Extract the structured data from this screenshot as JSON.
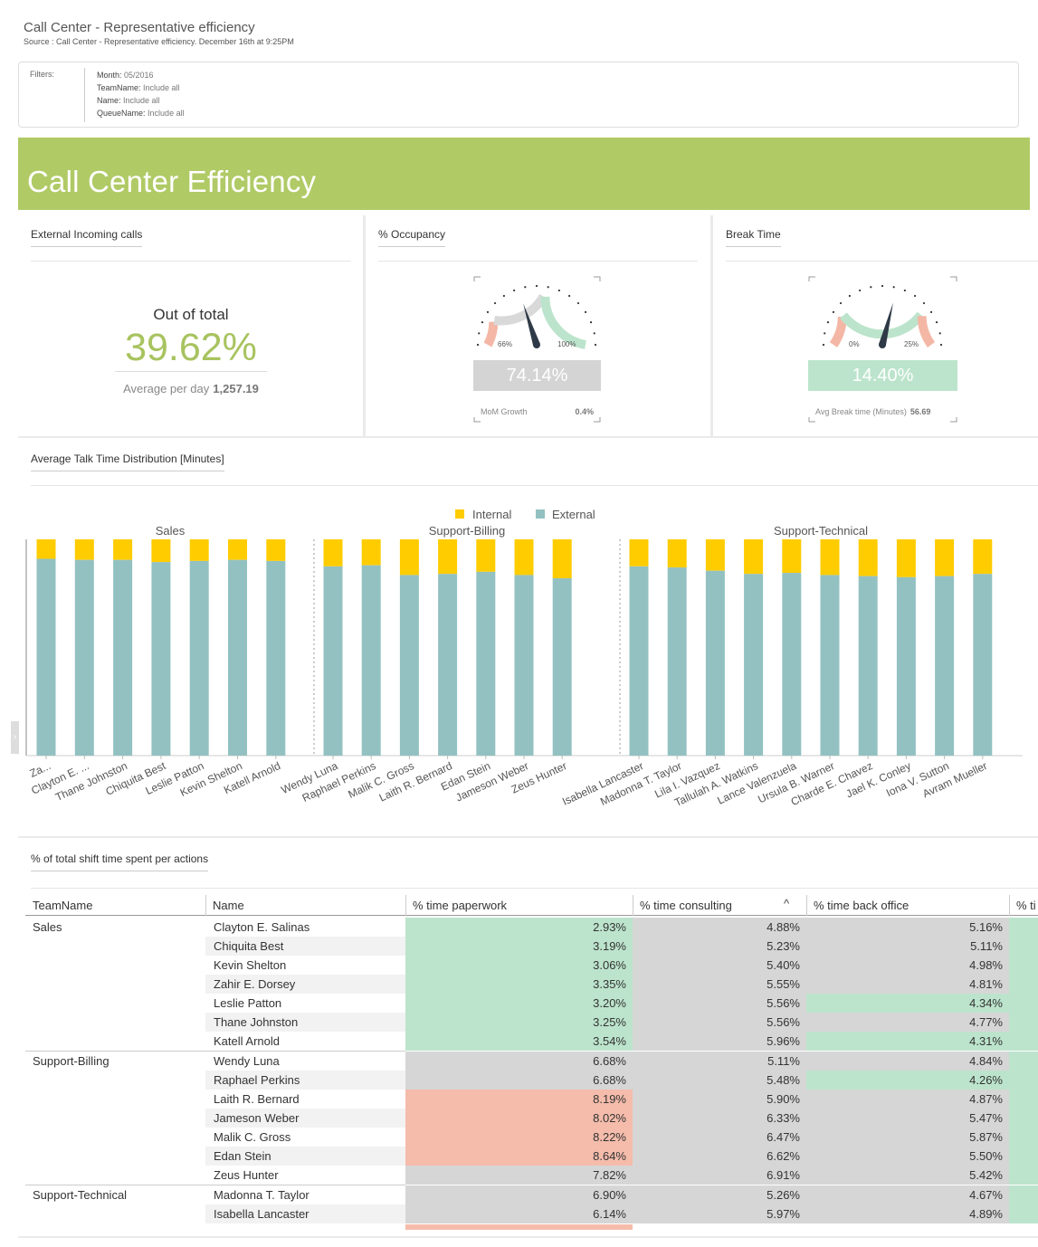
{
  "header": {
    "title": "Call Center - Representative efficiency",
    "source": "Source : Call Center - Representative efficiency. December 16th at 9:25PM"
  },
  "filters": {
    "label": "Filters:",
    "items": [
      {
        "key": "Month:",
        "value": "05/2016"
      },
      {
        "key": "TeamName:",
        "value": "Include all"
      },
      {
        "key": "Name:",
        "value": "Include all"
      },
      {
        "key": "QueueName:",
        "value": "Include all"
      }
    ]
  },
  "banner": {
    "title": "Call Center Efficiency",
    "color": "#b0ca66"
  },
  "kpi_external": {
    "title": "External Incoming calls",
    "caption": "Out of total",
    "value": "39.62%",
    "sub_label": "Average per day",
    "sub_value": "1,257.19"
  },
  "gauge_occupancy": {
    "title": "% Occupancy",
    "min_label": "66%",
    "max_label": "100%",
    "value": "74.14%",
    "needle_fraction": 0.4,
    "bar_color": "#d4d4d4",
    "footer_label": "MoM Growth",
    "footer_value": "0.4%"
  },
  "gauge_break": {
    "title": "Break Time",
    "min_label": "0%",
    "max_label": "25%",
    "value": "14.40%",
    "needle_fraction": 0.58,
    "bar_color": "#bce4cc",
    "footer_label": "Avg Break time (Minutes)",
    "footer_value": "56.69"
  },
  "talk_chart": {
    "title": "Average Talk Time Distribution [Minutes]"
  },
  "chart_data": {
    "type": "bar",
    "stacked": true,
    "legend": [
      "Internal",
      "External"
    ],
    "legend_position": "top-center",
    "colors": {
      "Internal": "#ffcc00",
      "External": "#93c1c1"
    },
    "groups": [
      {
        "name": "Sales",
        "categories": [
          "Za...",
          "Clayton E. ...",
          "Thane Johnston",
          "Chiquita Best",
          "Leslie Patton",
          "Kevin Shelton",
          "Katell Arnold"
        ],
        "internal": [
          9,
          9.5,
          9.5,
          10.5,
          10,
          9.5,
          10
        ],
        "external": [
          91,
          90.5,
          90.5,
          89.5,
          90,
          90.5,
          90
        ]
      },
      {
        "name": "Support-Billing",
        "categories": [
          "Wendy Luna",
          "Raphael Perkins",
          "Malik C. Gross",
          "Laith R. Bernard",
          "Edan Stein",
          "Jameson Weber",
          "Zeus Hunter"
        ],
        "internal": [
          12.5,
          12,
          16.5,
          16,
          15,
          16.5,
          18
        ],
        "external": [
          87.5,
          88,
          83.5,
          84,
          85,
          83.5,
          82
        ]
      },
      {
        "name": "Support-Technical",
        "categories": [
          "Isabella Lancaster",
          "Madonna T. Taylor",
          "Lila I. Vazquez",
          "Tallulah A. Watkins",
          "Lance Valenzuela",
          "Ursula B. Warner",
          "Charde E. Chavez",
          "Jael K. Conley",
          "Iona V. Sutton",
          "Avram Mueller"
        ],
        "internal": [
          12.5,
          13,
          14.5,
          16,
          15.5,
          16.5,
          17,
          17.5,
          17,
          16
        ],
        "external": [
          87.5,
          87,
          85.5,
          84,
          84.5,
          83.5,
          83,
          82.5,
          83,
          84
        ]
      }
    ],
    "ylim": [
      0,
      100
    ]
  },
  "shift_table": {
    "title": "% of total shift time spent per actions",
    "columns": [
      "TeamName",
      "Name",
      "% time paperwork",
      "% time consulting",
      "% time back office",
      "% ti"
    ],
    "sort_indicator": "^",
    "groups": [
      {
        "team": "Sales",
        "rows": [
          {
            "name": "Clayton E. Salinas",
            "paper": "2.93%",
            "consult": "4.88%",
            "back": "5.16%",
            "pc": "g",
            "bc": "n"
          },
          {
            "name": "Chiquita Best",
            "paper": "3.19%",
            "consult": "5.23%",
            "back": "5.11%",
            "pc": "g",
            "bc": "n"
          },
          {
            "name": "Kevin Shelton",
            "paper": "3.06%",
            "consult": "5.40%",
            "back": "4.98%",
            "pc": "g",
            "bc": "n"
          },
          {
            "name": "Zahir E. Dorsey",
            "paper": "3.35%",
            "consult": "5.55%",
            "back": "4.81%",
            "pc": "g",
            "bc": "n"
          },
          {
            "name": "Leslie Patton",
            "paper": "3.20%",
            "consult": "5.56%",
            "back": "4.34%",
            "pc": "g",
            "bc": "g"
          },
          {
            "name": "Thane Johnston",
            "paper": "3.25%",
            "consult": "5.56%",
            "back": "4.77%",
            "pc": "g",
            "bc": "n"
          },
          {
            "name": "Katell Arnold",
            "paper": "3.54%",
            "consult": "5.96%",
            "back": "4.31%",
            "pc": "g",
            "bc": "g"
          }
        ]
      },
      {
        "team": "Support-Billing",
        "rows": [
          {
            "name": "Wendy Luna",
            "paper": "6.68%",
            "consult": "5.11%",
            "back": "4.84%",
            "pc": "n",
            "bc": "n"
          },
          {
            "name": "Raphael Perkins",
            "paper": "6.68%",
            "consult": "5.48%",
            "back": "4.26%",
            "pc": "n",
            "bc": "g"
          },
          {
            "name": "Laith R. Bernard",
            "paper": "8.19%",
            "consult": "5.90%",
            "back": "4.87%",
            "pc": "r",
            "bc": "n"
          },
          {
            "name": "Jameson Weber",
            "paper": "8.02%",
            "consult": "6.33%",
            "back": "5.47%",
            "pc": "r",
            "bc": "n"
          },
          {
            "name": "Malik C. Gross",
            "paper": "8.22%",
            "consult": "6.47%",
            "back": "5.87%",
            "pc": "r",
            "bc": "n"
          },
          {
            "name": "Edan Stein",
            "paper": "8.64%",
            "consult": "6.62%",
            "back": "5.50%",
            "pc": "r",
            "bc": "n"
          },
          {
            "name": "Zeus Hunter",
            "paper": "7.82%",
            "consult": "6.91%",
            "back": "5.42%",
            "pc": "n",
            "bc": "n"
          }
        ]
      },
      {
        "team": "Support-Technical",
        "rows": [
          {
            "name": "Madonna T. Taylor",
            "paper": "6.90%",
            "consult": "5.26%",
            "back": "4.67%",
            "pc": "n",
            "bc": "n"
          },
          {
            "name": "Isabella Lancaster",
            "paper": "6.14%",
            "consult": "5.97%",
            "back": "4.89%",
            "pc": "n",
            "bc": "n"
          }
        ]
      }
    ],
    "colors": {
      "g": "#bce4cc",
      "r": "#f5bcab",
      "n": "#d6d6d6"
    }
  }
}
